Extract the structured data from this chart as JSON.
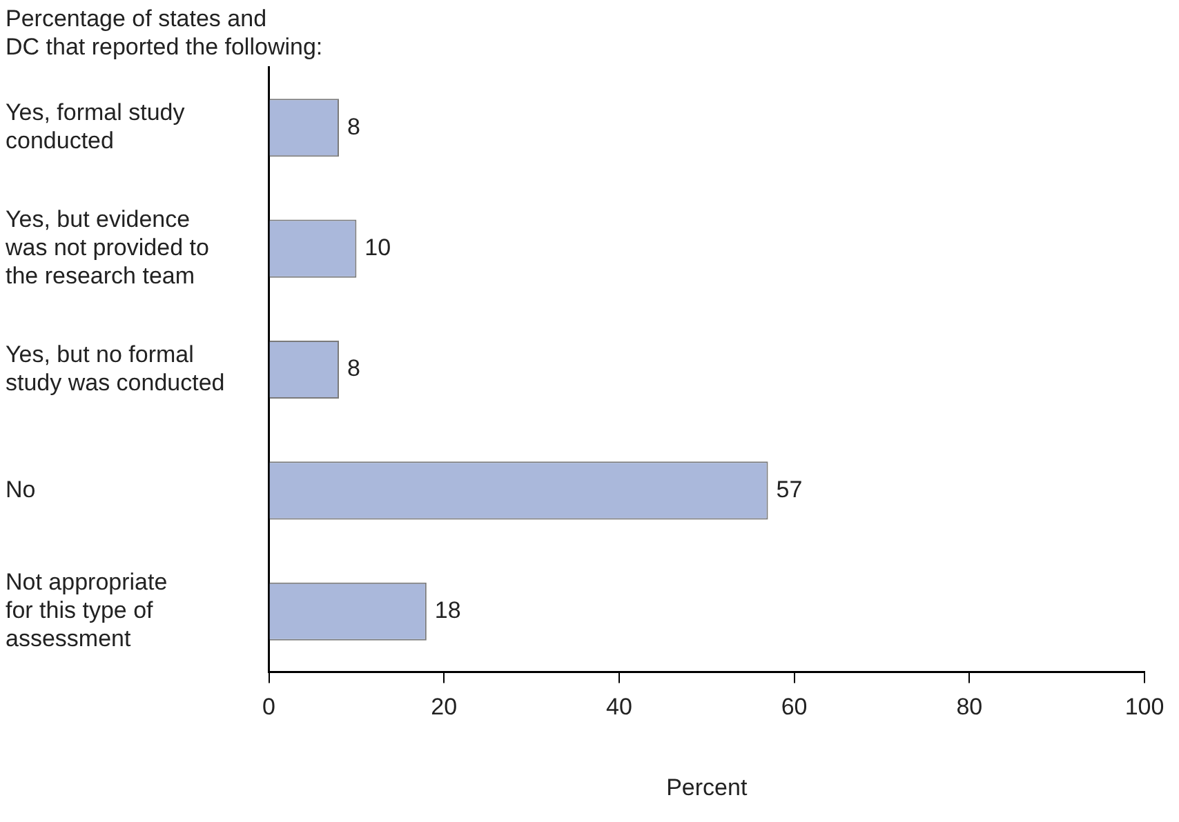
{
  "chart_data": {
    "type": "bar",
    "orientation": "horizontal",
    "title": "Percentage of states and\nDC that reported the following:",
    "categories": [
      "Yes, formal study\nconducted",
      "Yes, but evidence\nwas not provided to\nthe research team",
      "Yes, but no formal\nstudy was conducted",
      "No",
      "Not appropriate\nfor this type of\nassessment"
    ],
    "values": [
      8,
      10,
      8,
      57,
      18
    ],
    "color": "#aab8db",
    "data_labels": true,
    "xlabel": "Percent",
    "xlim": [
      0,
      100
    ],
    "xticks": [
      0,
      20,
      40,
      60,
      80,
      100
    ],
    "grid": false,
    "legend": false
  }
}
